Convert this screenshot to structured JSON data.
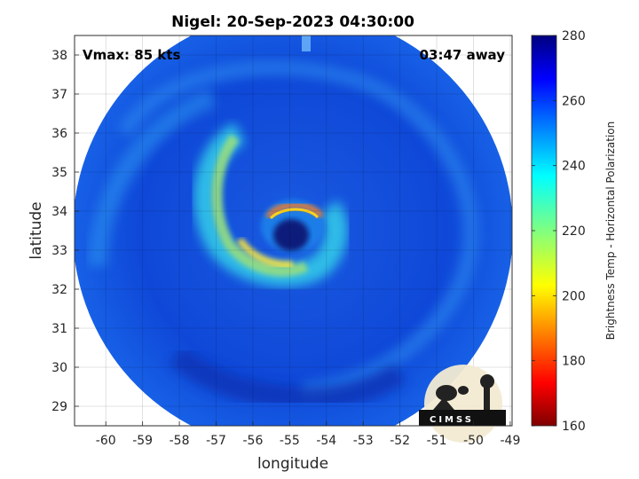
{
  "title": "Nigel: 20-Sep-2023 04:30:00",
  "vmax_label": "Vmax: 85 kts",
  "time_away_label": "03:47 away",
  "xlabel": "longitude",
  "ylabel": "latitude",
  "colorbar_label": "Brightness Temp - Horizontal Polarization",
  "logo_text": "CIMSS",
  "x_ticks": [
    "-60",
    "-59",
    "-58",
    "-57",
    "-56",
    "-55",
    "-54",
    "-53",
    "-52",
    "-51",
    "-50",
    "-49"
  ],
  "y_ticks": [
    "29",
    "30",
    "31",
    "32",
    "33",
    "34",
    "35",
    "36",
    "37",
    "38"
  ],
  "colorbar_ticks": [
    "160",
    "180",
    "200",
    "220",
    "240",
    "260",
    "280"
  ],
  "colormap": "jet",
  "background_color": "#0a3ccc",
  "eye_color": "#0a1f7a"
}
